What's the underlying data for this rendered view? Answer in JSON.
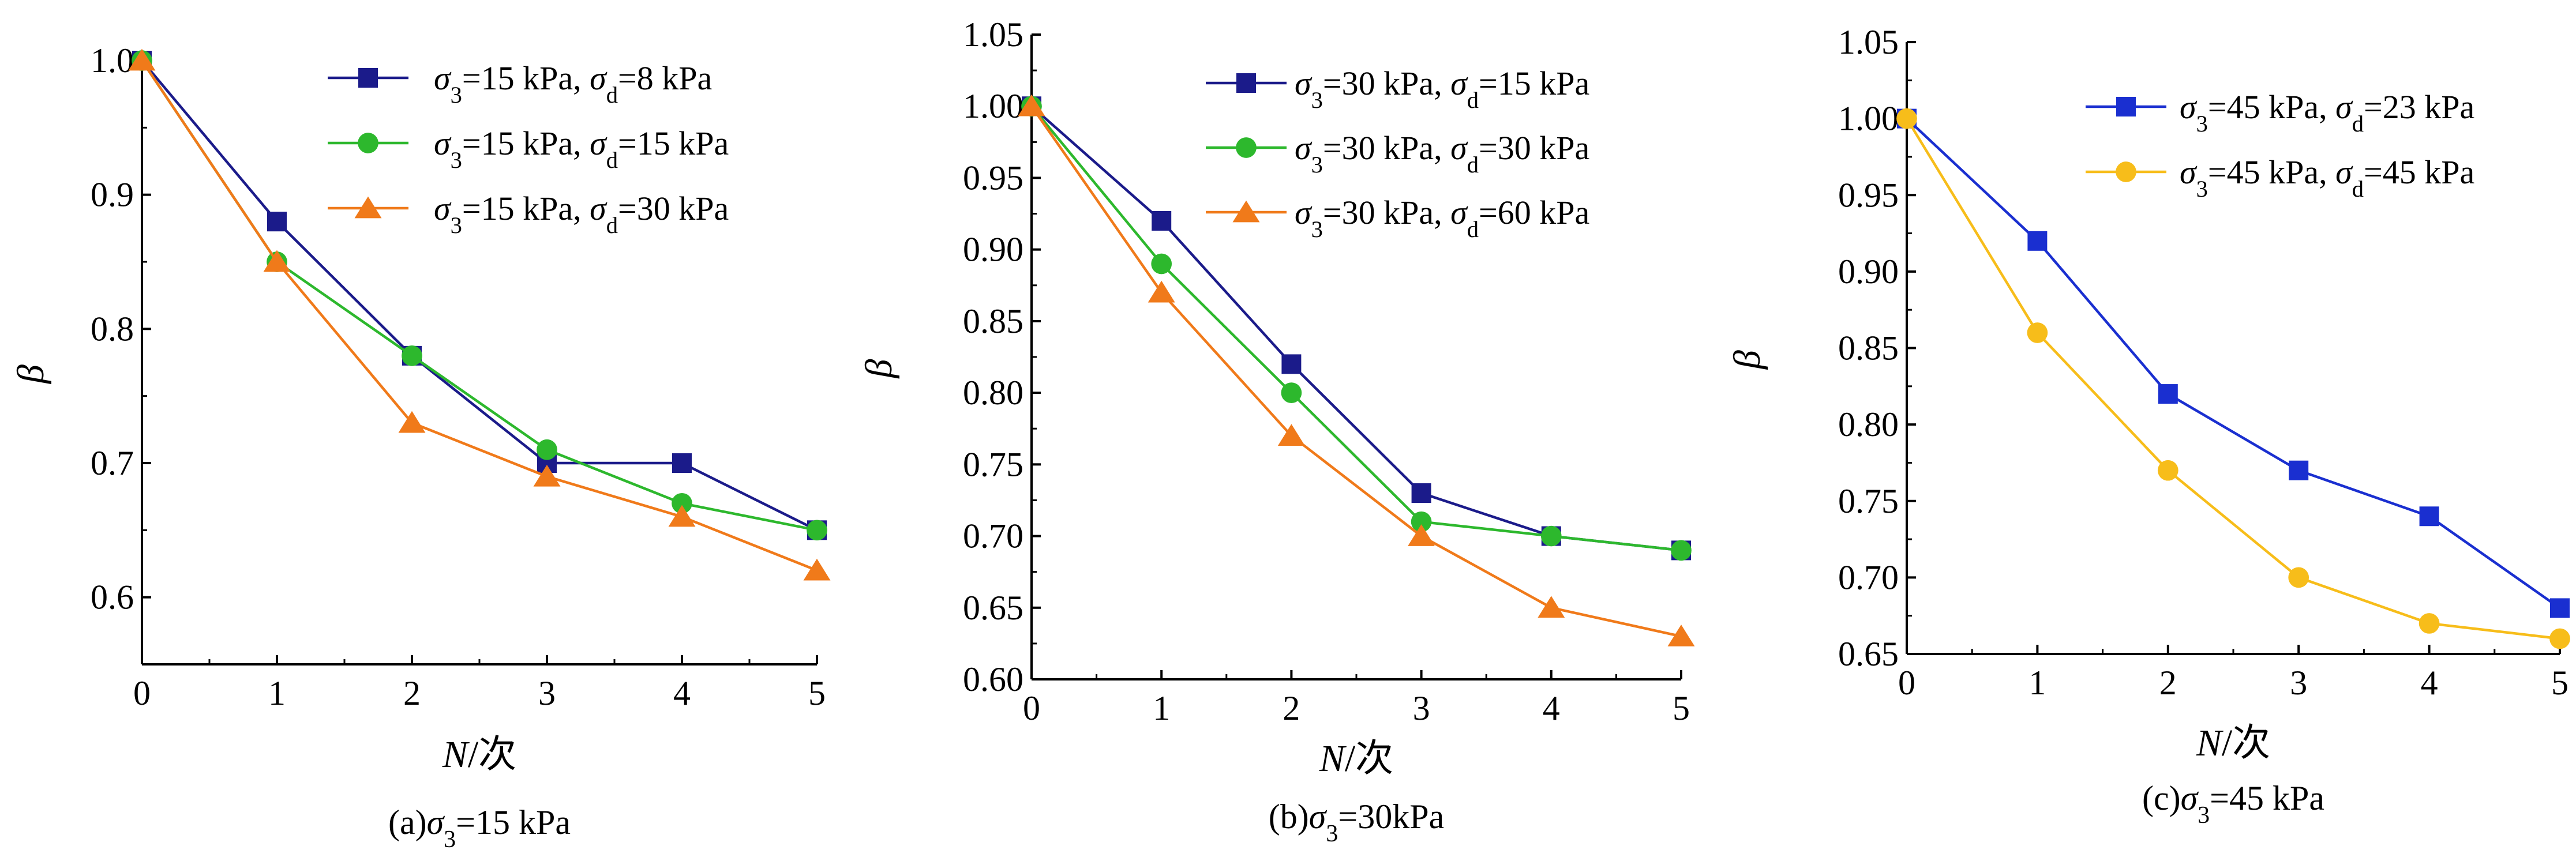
{
  "chart_data": [
    {
      "type": "line",
      "caption": "(a)σ3=15 kPa",
      "xlabel": "N/次",
      "ylabel": "β",
      "x": [
        0,
        1,
        2,
        3,
        4,
        5
      ],
      "xlim": [
        0,
        5
      ],
      "ylim": [
        0.55,
        1.0
      ],
      "xticks": [
        "0",
        "1",
        "2",
        "3",
        "4",
        "5"
      ],
      "yticks": [
        "0.6",
        "0.7",
        "0.8",
        "0.9",
        "1.0"
      ],
      "ytick_values": [
        0.6,
        0.7,
        0.8,
        0.9,
        1.0
      ],
      "grid": false,
      "legend_position": "top-right",
      "series": [
        {
          "name": "σ3=15 kPa, σd=8 kPa",
          "marker": "square",
          "color": "#1b1b8a",
          "values": [
            1.0,
            0.88,
            0.78,
            0.7,
            0.7,
            0.65
          ]
        },
        {
          "name": "σ3=15 kPa, σd=15 kPa",
          "marker": "circle",
          "color": "#2db82d",
          "values": [
            1.0,
            0.85,
            0.78,
            0.71,
            0.67,
            0.65
          ]
        },
        {
          "name": "σ3=15 kPa, σd=30 kPa",
          "marker": "triangle",
          "color": "#f07a1a",
          "values": [
            1.0,
            0.85,
            0.73,
            0.69,
            0.66,
            0.62
          ]
        }
      ]
    },
    {
      "type": "line",
      "caption": "(b)σ3=30kPa",
      "xlabel": "N/次",
      "ylabel": "β",
      "x": [
        0,
        1,
        2,
        3,
        4,
        5
      ],
      "xlim": [
        0,
        5
      ],
      "ylim": [
        0.6,
        1.05
      ],
      "xticks": [
        "0",
        "1",
        "2",
        "3",
        "4",
        "5"
      ],
      "yticks": [
        "0.60",
        "0.65",
        "0.70",
        "0.75",
        "0.80",
        "0.85",
        "0.90",
        "0.95",
        "1.00",
        "1.05"
      ],
      "ytick_values": [
        0.6,
        0.65,
        0.7,
        0.75,
        0.8,
        0.85,
        0.9,
        0.95,
        1.0,
        1.05
      ],
      "grid": false,
      "legend_position": "top-right",
      "series": [
        {
          "name": "σ3=30 kPa, σd=15 kPa",
          "marker": "square",
          "color": "#1b1b8a",
          "values": [
            1.0,
            0.92,
            0.82,
            0.73,
            0.7,
            0.69
          ]
        },
        {
          "name": "σ3=30 kPa, σd=30 kPa",
          "marker": "circle",
          "color": "#2db82d",
          "values": [
            1.0,
            0.89,
            0.8,
            0.71,
            0.7,
            0.69
          ]
        },
        {
          "name": "σ3=30 kPa, σd=60 kPa",
          "marker": "triangle",
          "color": "#f07a1a",
          "values": [
            1.0,
            0.87,
            0.77,
            0.7,
            0.65,
            0.63
          ]
        }
      ]
    },
    {
      "type": "line",
      "caption": "(c)σ3=45 kPa",
      "xlabel": "N/次",
      "ylabel": "β",
      "x": [
        0,
        1,
        2,
        3,
        4,
        5
      ],
      "xlim": [
        0,
        5
      ],
      "ylim": [
        0.65,
        1.05
      ],
      "xticks": [
        "0",
        "1",
        "2",
        "3",
        "4",
        "5"
      ],
      "yticks": [
        "0.65",
        "0.70",
        "0.75",
        "0.80",
        "0.85",
        "0.90",
        "0.95",
        "1.00",
        "1.05"
      ],
      "ytick_values": [
        0.65,
        0.7,
        0.75,
        0.8,
        0.85,
        0.9,
        0.95,
        1.0,
        1.05
      ],
      "grid": false,
      "legend_position": "top-right",
      "series": [
        {
          "name": "σ3=45 kPa, σd=23 kPa",
          "marker": "square",
          "color": "#1a2fd0",
          "values": [
            1.0,
            0.92,
            0.82,
            0.77,
            0.74,
            0.68
          ]
        },
        {
          "name": "σ3=45 kPa, σd=45 kPa",
          "marker": "circle",
          "color": "#f7bd1a",
          "values": [
            1.0,
            0.86,
            0.77,
            0.7,
            0.67,
            0.66
          ]
        }
      ]
    }
  ]
}
